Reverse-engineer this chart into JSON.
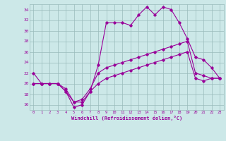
{
  "xlabel": "Windchill (Refroidissement éolien,°C)",
  "bg_color": "#cce8e8",
  "grid_color": "#99bbbb",
  "line_color": "#990099",
  "xlim": [
    -0.5,
    23.5
  ],
  "ylim": [
    15,
    35
  ],
  "yticks": [
    16,
    18,
    20,
    22,
    24,
    26,
    28,
    30,
    32,
    34
  ],
  "xticks": [
    0,
    1,
    2,
    3,
    4,
    5,
    6,
    7,
    8,
    9,
    10,
    11,
    12,
    13,
    14,
    15,
    16,
    17,
    18,
    19,
    20,
    21,
    22,
    23
  ],
  "series1_x": [
    0,
    1,
    2,
    3,
    4,
    5,
    6,
    7,
    8,
    9,
    10,
    11,
    12,
    13,
    14,
    15,
    16,
    17,
    18,
    19,
    20,
    21,
    22,
    23
  ],
  "series1_y": [
    22,
    20,
    20,
    20,
    18.5,
    15.5,
    16,
    18.5,
    23.5,
    31.5,
    31.5,
    31.5,
    31,
    33,
    34.5,
    33,
    34.5,
    34,
    31.5,
    28.5,
    25,
    24.5,
    23,
    21
  ],
  "series2_x": [
    0,
    1,
    2,
    3,
    4,
    5,
    6,
    7,
    8,
    9,
    10,
    11,
    12,
    13,
    14,
    15,
    16,
    17,
    18,
    19,
    20,
    21,
    22,
    23
  ],
  "series2_y": [
    20,
    20,
    20,
    20,
    19,
    16.5,
    17,
    19,
    22,
    23,
    23.5,
    24,
    24.5,
    25,
    25.5,
    26,
    26.5,
    27,
    27.5,
    28,
    22,
    21.5,
    21,
    21
  ],
  "series3_x": [
    0,
    1,
    2,
    3,
    4,
    5,
    6,
    7,
    8,
    9,
    10,
    11,
    12,
    13,
    14,
    15,
    16,
    17,
    18,
    19,
    20,
    21,
    22,
    23
  ],
  "series3_y": [
    20,
    20,
    20,
    20,
    18.5,
    16.5,
    16.5,
    18.5,
    20,
    21,
    21.5,
    22,
    22.5,
    23,
    23.5,
    24,
    24.5,
    25,
    25.5,
    26,
    21,
    20.5,
    21,
    21
  ]
}
